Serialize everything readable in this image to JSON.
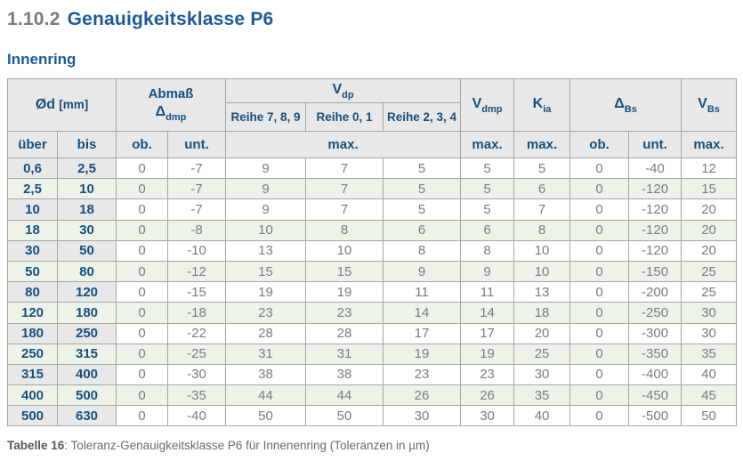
{
  "page": {
    "section_number": "1.10.2",
    "section_title": "Genauigkeitsklasse P6",
    "subtitle": "Innenring",
    "caption_label": "Tabelle 16",
    "caption_text": ": Toleranz-Genauigkeitsklasse P6 für Innenenring (Toleranzen in µm)"
  },
  "colors": {
    "heading_blue": "#1c5b99",
    "table_text_blue": "#17507f",
    "header_gray_bg": "#e8e8e8",
    "alt_row_green": "#eef3ea",
    "data_text_gray": "#7c7c7c",
    "border_gray": "#a2a6a2"
  },
  "table": {
    "header": {
      "col_d_main": "Ød",
      "col_d_unit": "[mm]",
      "col_abmass_line1": "Abmaß",
      "col_abmass_sym": "Δ",
      "col_abmass_sub": "dmp",
      "col_vdp_sym": "V",
      "col_vdp_sub": "dp",
      "reihe_789": "Reihe 7, 8, 9",
      "reihe_01": "Reihe 0, 1",
      "reihe_234": "Reihe 2, 3, 4",
      "col_vdmp_sym": "V",
      "col_vdmp_sub": "dmp",
      "col_kia_sym": "K",
      "col_kia_sub": "ia",
      "col_dbs_sym": "Δ",
      "col_dbs_sub": "Bs",
      "col_vbs_sym": "V",
      "col_vbs_sub": "Bs",
      "ueber": "über",
      "bis": "bis",
      "ob": "ob.",
      "unt": "unt.",
      "max_vdp": "max.",
      "max_vdmp": "max.",
      "max_kia": "max.",
      "ob_bs": "ob.",
      "unt_bs": "unt.",
      "max_vbs": "max."
    },
    "rows": [
      [
        "0,6",
        "2,5",
        "0",
        "-7",
        "9",
        "7",
        "5",
        "5",
        "5",
        "0",
        "-40",
        "12"
      ],
      [
        "2,5",
        "10",
        "0",
        "-7",
        "9",
        "7",
        "5",
        "5",
        "6",
        "0",
        "-120",
        "15"
      ],
      [
        "10",
        "18",
        "0",
        "-7",
        "9",
        "7",
        "5",
        "5",
        "7",
        "0",
        "-120",
        "20"
      ],
      [
        "18",
        "30",
        "0",
        "-8",
        "10",
        "8",
        "6",
        "6",
        "8",
        "0",
        "-120",
        "20"
      ],
      [
        "30",
        "50",
        "0",
        "-10",
        "13",
        "10",
        "8",
        "8",
        "10",
        "0",
        "-120",
        "20"
      ],
      [
        "50",
        "80",
        "0",
        "-12",
        "15",
        "15",
        "9",
        "9",
        "10",
        "0",
        "-150",
        "25"
      ],
      [
        "80",
        "120",
        "0",
        "-15",
        "19",
        "19",
        "11",
        "11",
        "13",
        "0",
        "-200",
        "25"
      ],
      [
        "120",
        "180",
        "0",
        "-18",
        "23",
        "23",
        "14",
        "14",
        "18",
        "0",
        "-250",
        "30"
      ],
      [
        "180",
        "250",
        "0",
        "-22",
        "28",
        "28",
        "17",
        "17",
        "20",
        "0",
        "-300",
        "30"
      ],
      [
        "250",
        "315",
        "0",
        "-25",
        "31",
        "31",
        "19",
        "19",
        "25",
        "0",
        "-350",
        "35"
      ],
      [
        "315",
        "400",
        "0",
        "-30",
        "38",
        "38",
        "23",
        "23",
        "30",
        "0",
        "-400",
        "40"
      ],
      [
        "400",
        "500",
        "0",
        "-35",
        "44",
        "44",
        "26",
        "26",
        "35",
        "0",
        "-450",
        "45"
      ],
      [
        "500",
        "630",
        "0",
        "-40",
        "50",
        "50",
        "30",
        "30",
        "40",
        "0",
        "-500",
        "50"
      ]
    ]
  }
}
